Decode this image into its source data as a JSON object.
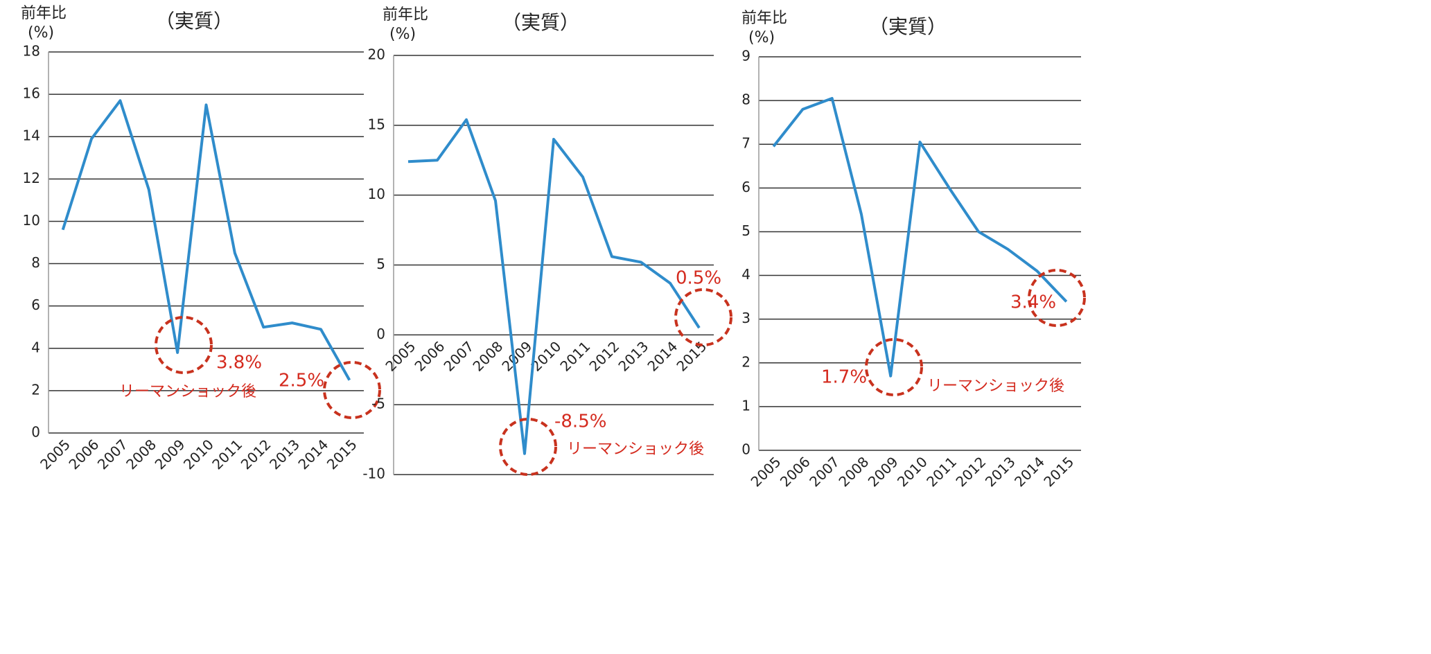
{
  "chart_data": [
    {
      "type": "line",
      "title": "（実質）",
      "ylabel": "前年比",
      "yunit": "(%)",
      "categories": [
        "2005",
        "2006",
        "2007",
        "2008",
        "2009",
        "2010",
        "2011",
        "2012",
        "2013",
        "2014",
        "2015"
      ],
      "values": [
        9.6,
        13.9,
        15.7,
        11.5,
        3.8,
        15.5,
        8.5,
        5.0,
        5.2,
        4.9,
        2.5
      ],
      "color": "#2f8ccb",
      "ylim": [
        0,
        18
      ],
      "yticks": [
        0,
        2,
        4,
        6,
        8,
        10,
        12,
        14,
        16,
        18
      ],
      "grid": true,
      "annotations": [
        "3.8%",
        "リーマンショック後",
        "2.5%"
      ]
    },
    {
      "type": "line",
      "title": "（実質）",
      "ylabel": "前年比",
      "yunit": "(%)",
      "categories": [
        "2005",
        "2006",
        "2007",
        "2008",
        "2009",
        "2010",
        "2011",
        "2012",
        "2013",
        "2014",
        "2015"
      ],
      "values": [
        12.4,
        12.5,
        15.4,
        9.6,
        -8.5,
        14.0,
        11.3,
        5.6,
        5.2,
        3.7,
        0.5
      ],
      "color": "#2f8ccb",
      "ylim": [
        -10,
        20
      ],
      "yticks": [
        -10,
        -5,
        0,
        5,
        10,
        15,
        20
      ],
      "grid": true,
      "annotations": [
        "0.5%",
        "-8.5%",
        "リーマンショック後"
      ]
    },
    {
      "type": "line",
      "title": "（実質）",
      "ylabel": "前年比",
      "yunit": "(%)",
      "categories": [
        "2005",
        "2006",
        "2007",
        "2008",
        "2009",
        "2010",
        "2011",
        "2012",
        "2013",
        "2014",
        "2015"
      ],
      "values": [
        6.95,
        7.8,
        8.05,
        5.4,
        1.7,
        7.05,
        6.0,
        5.0,
        4.6,
        4.1,
        3.4
      ],
      "color": "#2f8ccb",
      "ylim": [
        0,
        9
      ],
      "yticks": [
        0,
        1,
        2,
        3,
        4,
        5,
        6,
        7,
        8,
        9
      ],
      "grid": true,
      "annotations": [
        "3.4%",
        "1.7%",
        "リーマンショック後"
      ]
    }
  ]
}
